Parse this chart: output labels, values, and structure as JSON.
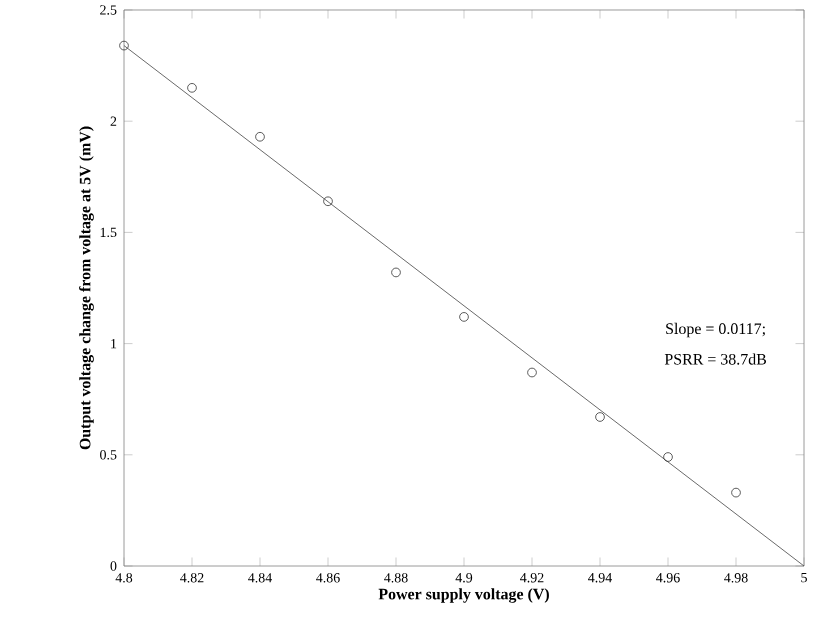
{
  "chart_data": {
    "type": "scatter",
    "xlabel": "Power supply voltage (V)",
    "ylabel": "Output voltage change from voltage at 5V (mV)",
    "xlim": [
      4.8,
      5.0
    ],
    "ylim": [
      0,
      2.5
    ],
    "xticks": [
      4.8,
      4.82,
      4.84,
      4.86,
      4.88,
      4.9,
      4.92,
      4.94,
      4.96,
      4.98,
      5
    ],
    "yticks": [
      0,
      0.5,
      1,
      1.5,
      2,
      2.5
    ],
    "series": [
      {
        "color": "#333333",
        "marker": "circle",
        "x": [
          4.8,
          4.82,
          4.84,
          4.86,
          4.88,
          4.9,
          4.92,
          4.94,
          4.96,
          4.98
        ],
        "values": [
          2.34,
          2.15,
          1.93,
          1.64,
          1.32,
          1.12,
          0.87,
          0.67,
          0.49,
          0.33
        ]
      },
      {
        "type": "line",
        "color": "#444444",
        "marker": "none",
        "line_style": "solid",
        "x": [
          4.8,
          5.0
        ],
        "values": [
          2.34,
          0
        ]
      }
    ],
    "annotations": [
      "Slope = 0.0117;",
      "PSRR = 38.7dB"
    ]
  }
}
